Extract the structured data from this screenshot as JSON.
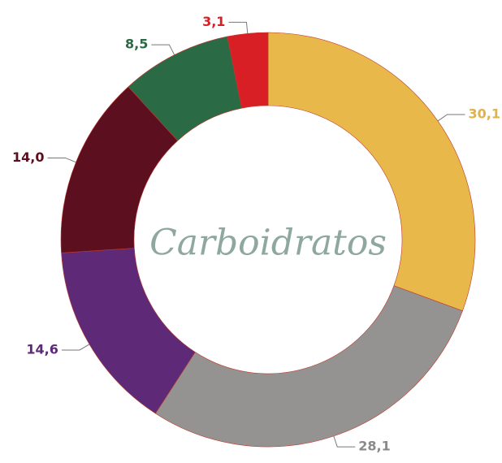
{
  "chart_data": {
    "type": "donut",
    "title": "Carboidratos",
    "values": [
      30.1,
      28.1,
      14.6,
      14.0,
      8.5,
      3.1
    ],
    "value_labels": [
      "30,1",
      "28,1",
      "14,6",
      "14,0",
      "8,5",
      "3,1"
    ],
    "colors": [
      "#e8b84b",
      "#949391",
      "#5e2a78",
      "#5c0f1f",
      "#2a6b45",
      "#d81f26"
    ],
    "label_colors": [
      "#e0b24a",
      "#8a8a8a",
      "#5e2a78",
      "#5c0f1f",
      "#2a6b45",
      "#d81f26"
    ]
  }
}
